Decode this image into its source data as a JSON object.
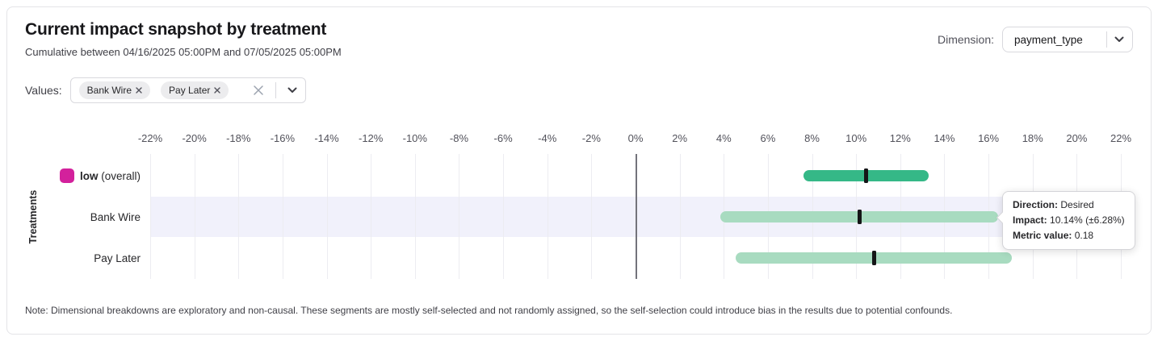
{
  "header": {
    "title": "Current impact snapshot by treatment",
    "subtitle": "Cumulative between 04/16/2025 05:00PM and 07/05/2025 05:00PM",
    "dimension_label": "Dimension:",
    "dimension_value": "payment_type"
  },
  "values_filter": {
    "label": "Values:",
    "chips": [
      {
        "label": "Bank Wire"
      },
      {
        "label": "Pay Later"
      }
    ]
  },
  "chart_data": {
    "type": "bar",
    "orientation": "horizontal-interval",
    "ylabel": "Treatments",
    "xlim": [
      -22,
      22
    ],
    "grid": true,
    "x_tick_labels": [
      "-22%",
      "-20%",
      "-18%",
      "-16%",
      "-14%",
      "-12%",
      "-10%",
      "-8%",
      "-6%",
      "-4%",
      "-2%",
      "0%",
      "2%",
      "4%",
      "6%",
      "8%",
      "10%",
      "12%",
      "14%",
      "16%",
      "18%",
      "20%",
      "22%"
    ],
    "rows": [
      {
        "label": "low",
        "label_note": " (overall)",
        "legend_color": "#d3219c",
        "impact": 10.45,
        "moe": 2.82,
        "bar_color": "#35b887",
        "highlighted": false
      },
      {
        "label": "Bank Wire",
        "label_note": "",
        "legend_color": "",
        "impact": 10.14,
        "moe": 6.28,
        "bar_color": "#a8dbc0",
        "highlighted": true
      },
      {
        "label": "Pay Later",
        "label_note": "",
        "legend_color": "",
        "impact": 10.8,
        "moe": 6.25,
        "bar_color": "#a8dbc0",
        "highlighted": false
      }
    ]
  },
  "tooltip": {
    "rows": [
      {
        "label": "Direction:",
        "value": "Desired"
      },
      {
        "label": "Impact:",
        "value": "10.14% (±6.28%)"
      },
      {
        "label": "Metric value:",
        "value": "0.18"
      }
    ]
  },
  "note": "Note: Dimensional breakdowns are exploratory and non-causal. These segments are mostly self-selected and not randomly assigned, so the self-selection could introduce bias in the results due to potential confounds."
}
